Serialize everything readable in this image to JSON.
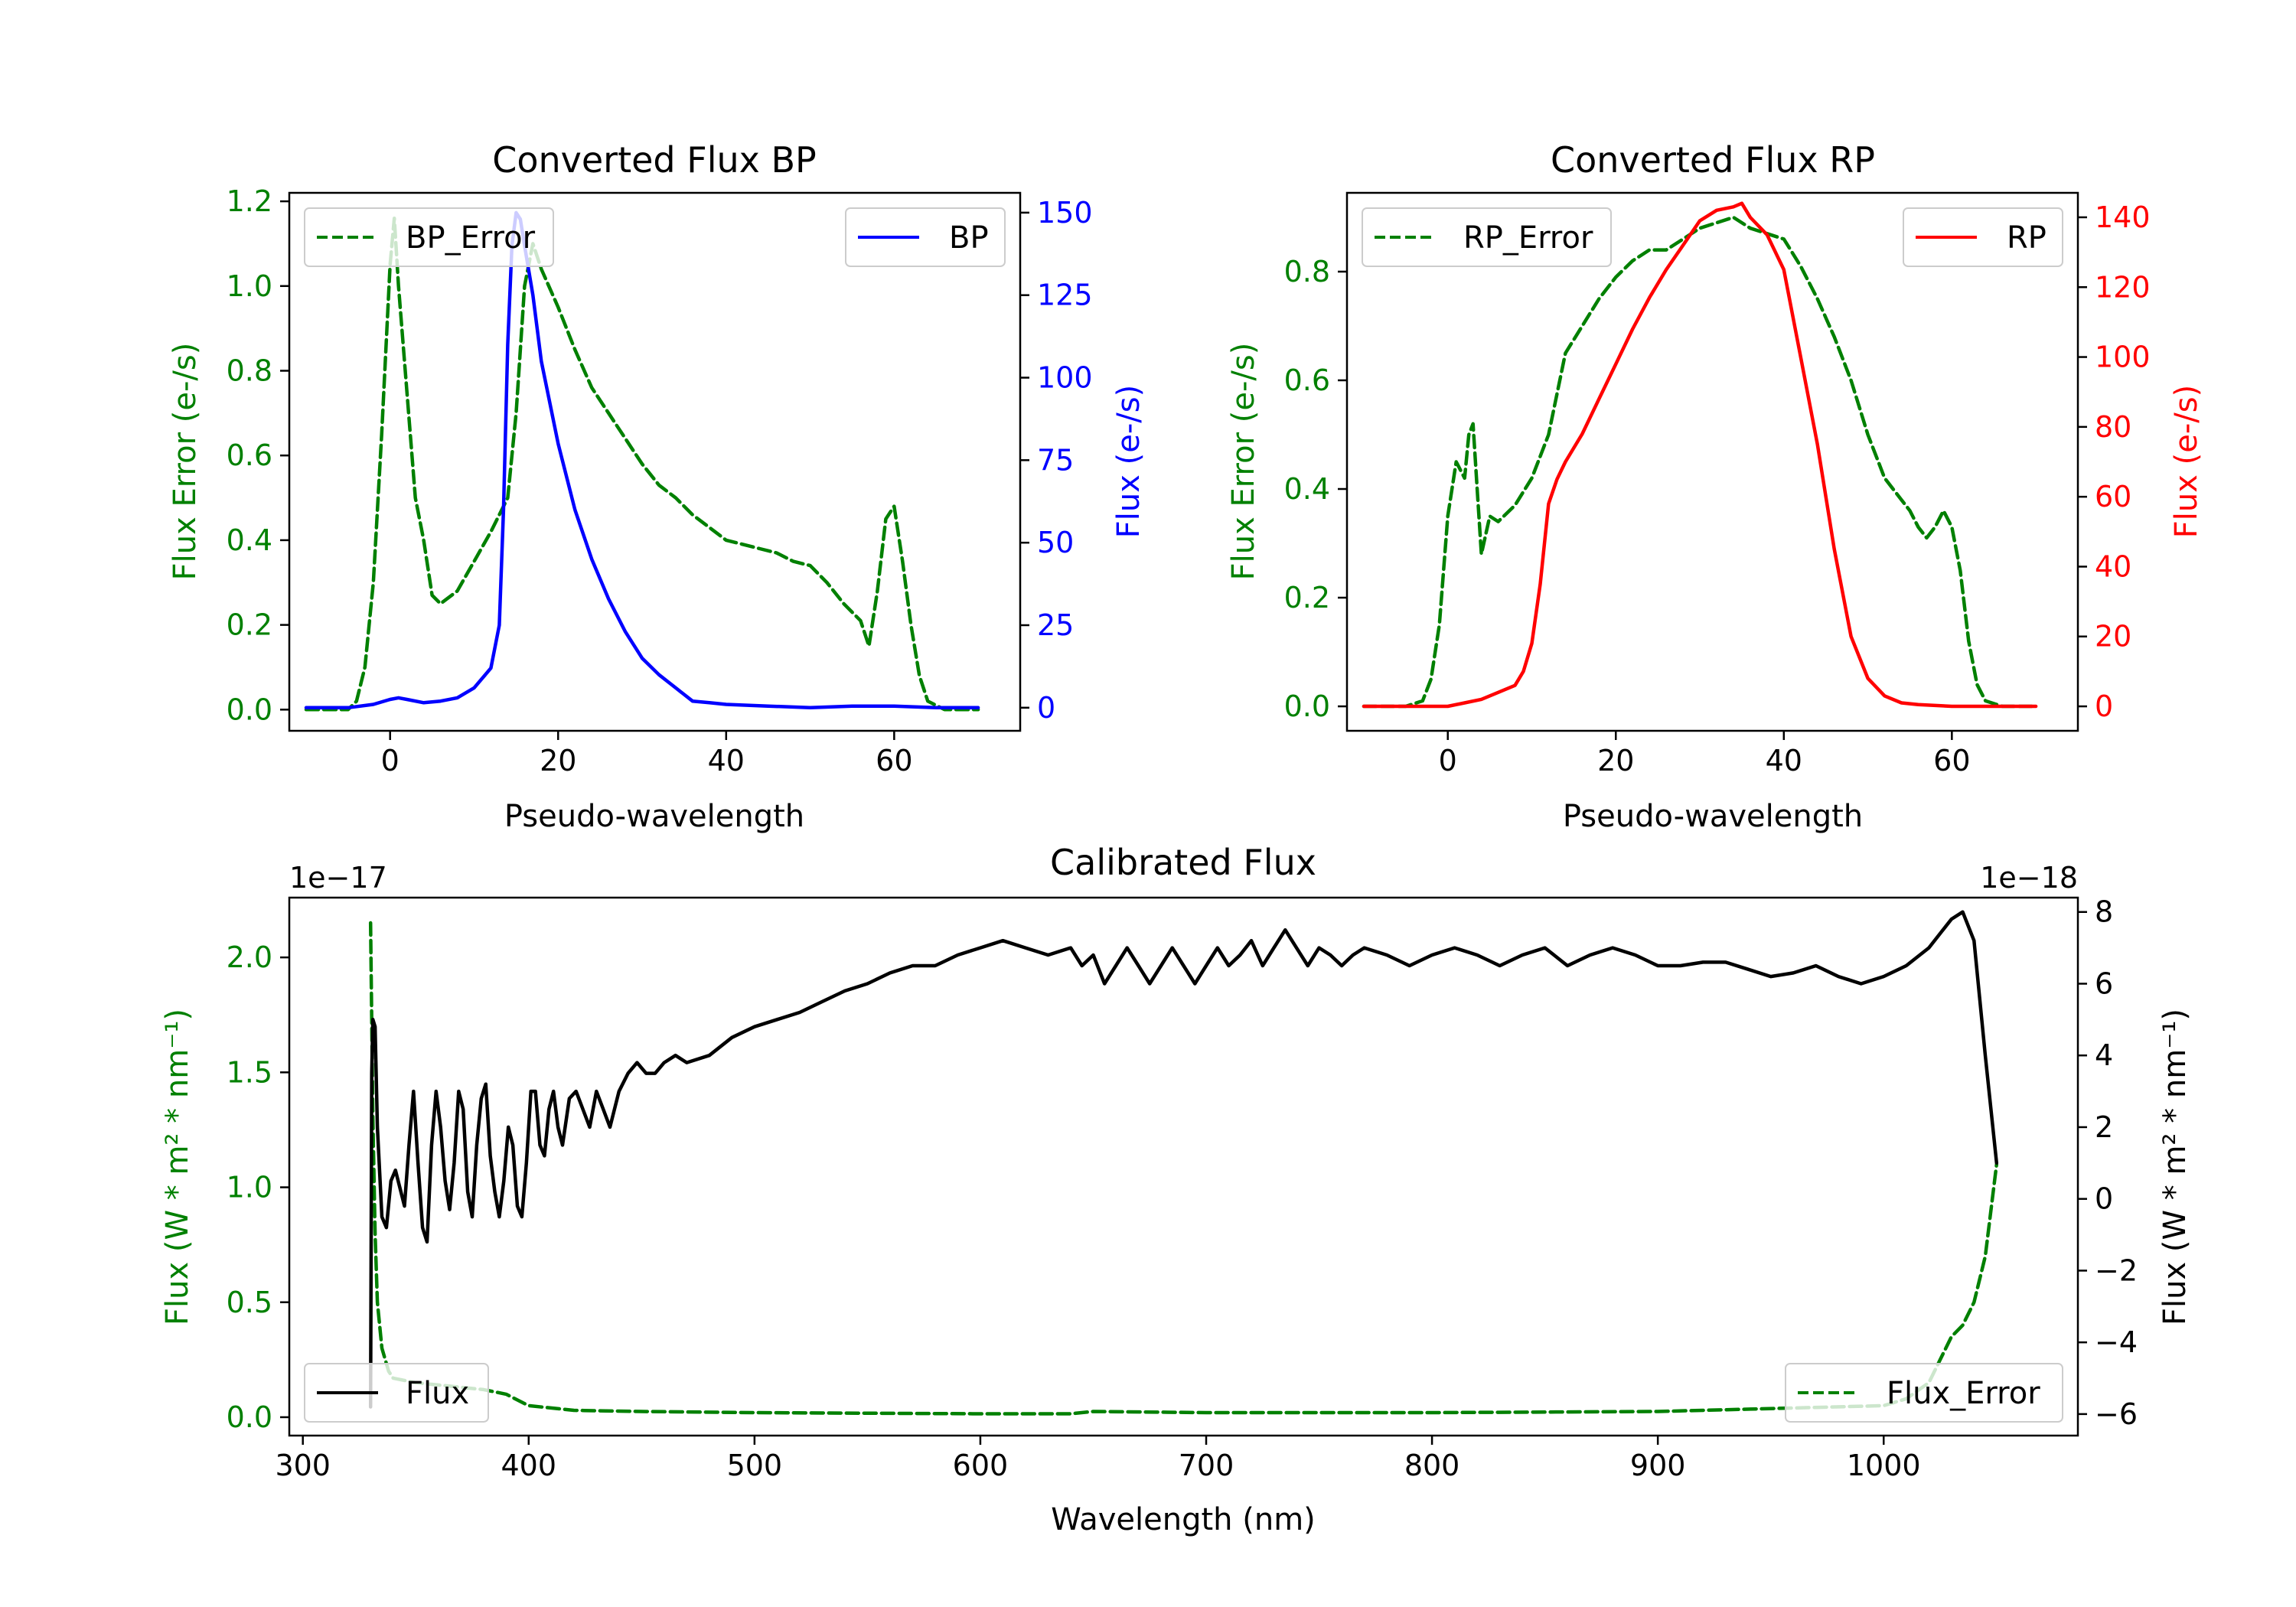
{
  "chart_data": [
    {
      "type": "line",
      "title": "Converted Flux BP",
      "xlabel": "Pseudo-wavelength",
      "ylabel_left": "Flux Error (e-/s)",
      "ylabel_right": "Flux (e-/s)",
      "xlim": [
        -12,
        75
      ],
      "ylim_left": [
        -0.05,
        1.22
      ],
      "ylim_right": [
        -7,
        156
      ],
      "xticks": [
        0,
        20,
        40,
        60
      ],
      "yticks_left": [
        0.0,
        0.2,
        0.4,
        0.6,
        0.8,
        1.0,
        1.2
      ],
      "yticks_right": [
        0,
        25,
        50,
        75,
        100,
        125,
        150
      ],
      "colors": {
        "left": "#008000",
        "right": "#0000ff"
      },
      "series": [
        {
          "name": "BP_Error",
          "axis": "left",
          "color": "#008000",
          "dash": true,
          "x": [
            -10,
            -5,
            -4,
            -3,
            -2,
            -1,
            0,
            0.5,
            1,
            2,
            3,
            4,
            5,
            6,
            8,
            10,
            12,
            14,
            15,
            16,
            17,
            18,
            20,
            22,
            24,
            26,
            28,
            30,
            32,
            34,
            36,
            38,
            40,
            42,
            44,
            46,
            48,
            50,
            52,
            54,
            56,
            57,
            58,
            59,
            60,
            61,
            62,
            63,
            64,
            66,
            70
          ],
          "y": [
            0.0,
            0.0,
            0.02,
            0.1,
            0.3,
            0.65,
            1.05,
            1.16,
            1.0,
            0.75,
            0.5,
            0.4,
            0.27,
            0.25,
            0.28,
            0.35,
            0.42,
            0.5,
            0.7,
            1.0,
            1.1,
            1.04,
            0.95,
            0.85,
            0.76,
            0.7,
            0.64,
            0.58,
            0.53,
            0.5,
            0.46,
            0.43,
            0.4,
            0.39,
            0.38,
            0.37,
            0.35,
            0.34,
            0.3,
            0.25,
            0.21,
            0.15,
            0.28,
            0.45,
            0.48,
            0.35,
            0.2,
            0.08,
            0.02,
            0.0,
            0.0
          ]
        },
        {
          "name": "BP",
          "axis": "right",
          "color": "#0000ff",
          "dash": false,
          "x": [
            -10,
            -5,
            -2,
            0,
            1,
            2,
            4,
            6,
            8,
            10,
            12,
            13,
            13.5,
            14,
            14.5,
            15,
            15.5,
            16,
            17,
            18,
            20,
            22,
            24,
            26,
            28,
            30,
            32,
            34,
            36,
            38,
            40,
            45,
            50,
            55,
            60,
            65,
            70
          ],
          "y": [
            0,
            0,
            1,
            2.5,
            3,
            2.5,
            1.5,
            2,
            3,
            6,
            12,
            25,
            60,
            110,
            140,
            150,
            148,
            140,
            125,
            105,
            80,
            60,
            45,
            33,
            23,
            15,
            10,
            6,
            2,
            1.5,
            1,
            0.5,
            0,
            0.5,
            0.5,
            0,
            0
          ]
        }
      ],
      "legend": [
        {
          "label": "BP_Error",
          "position": "upper-left"
        },
        {
          "label": "BP",
          "position": "upper-right"
        }
      ]
    },
    {
      "type": "line",
      "title": "Converted Flux RP",
      "xlabel": "Pseudo-wavelength",
      "ylabel_left": "Flux Error (e-/s)",
      "ylabel_right": "Flux (e-/s)",
      "xlim": [
        -12,
        75
      ],
      "ylim_left": [
        -0.045,
        0.945
      ],
      "ylim_right": [
        -7,
        147
      ],
      "xticks": [
        0,
        20,
        40,
        60
      ],
      "yticks_left": [
        0.0,
        0.2,
        0.4,
        0.6,
        0.8
      ],
      "yticks_right": [
        0,
        20,
        40,
        60,
        80,
        100,
        120,
        140
      ],
      "colors": {
        "left": "#008000",
        "right": "#ff0000"
      },
      "series": [
        {
          "name": "RP_Error",
          "axis": "left",
          "color": "#008000",
          "dash": true,
          "x": [
            -10,
            -5,
            -3,
            -2,
            -1,
            0,
            1,
            2,
            2.5,
            3,
            3.5,
            4,
            5,
            6,
            8,
            10,
            12,
            14,
            16,
            18,
            20,
            22,
            24,
            26,
            28,
            30,
            32,
            34,
            36,
            38,
            40,
            42,
            44,
            46,
            48,
            50,
            52,
            54,
            55,
            56,
            57,
            58,
            59,
            60,
            61,
            62,
            63,
            64,
            66,
            70
          ],
          "y": [
            0.0,
            0.0,
            0.01,
            0.05,
            0.15,
            0.35,
            0.45,
            0.42,
            0.5,
            0.52,
            0.4,
            0.28,
            0.35,
            0.34,
            0.37,
            0.42,
            0.5,
            0.65,
            0.7,
            0.75,
            0.79,
            0.82,
            0.84,
            0.84,
            0.86,
            0.88,
            0.89,
            0.9,
            0.88,
            0.87,
            0.86,
            0.81,
            0.75,
            0.68,
            0.6,
            0.5,
            0.42,
            0.38,
            0.36,
            0.33,
            0.31,
            0.33,
            0.36,
            0.33,
            0.25,
            0.12,
            0.04,
            0.01,
            0.0,
            0.0
          ]
        },
        {
          "name": "RP",
          "axis": "right",
          "color": "#ff0000",
          "dash": false,
          "x": [
            -10,
            -5,
            0,
            2,
            4,
            6,
            8,
            9,
            10,
            11,
            12,
            13,
            14,
            16,
            18,
            20,
            22,
            24,
            26,
            28,
            30,
            32,
            34,
            35,
            36,
            38,
            40,
            42,
            44,
            46,
            48,
            50,
            52,
            54,
            56,
            60,
            65,
            70
          ],
          "y": [
            0,
            0,
            0,
            1,
            2,
            4,
            6,
            10,
            18,
            35,
            58,
            65,
            70,
            78,
            88,
            98,
            108,
            117,
            125,
            132,
            139,
            142,
            143,
            144,
            140,
            135,
            125,
            100,
            75,
            45,
            20,
            8,
            3,
            1,
            0.5,
            0,
            0,
            0
          ]
        }
      ],
      "legend": [
        {
          "label": "RP_Error",
          "position": "upper-left"
        },
        {
          "label": "RP",
          "position": "upper-right"
        }
      ]
    },
    {
      "type": "line",
      "title": "Calibrated Flux",
      "xlabel": "Wavelength (nm)",
      "ylabel_left": "Flux (W * m² * nm⁻¹)",
      "ylabel_right": "Flux (W * m² * nm⁻¹)",
      "offset_left": "1e−17",
      "offset_right": "1e−18",
      "xlim": [
        294,
        1086
      ],
      "ylim_left": [
        -0.08,
        2.26
      ],
      "ylim_right": [
        -6.6,
        8.4
      ],
      "xticks": [
        300,
        400,
        500,
        600,
        700,
        800,
        900,
        1000
      ],
      "yticks_left": [
        0.0,
        0.5,
        1.0,
        1.5,
        2.0
      ],
      "yticks_right": [
        -6,
        -4,
        -2,
        0,
        2,
        4,
        6,
        8
      ],
      "colors": {
        "left": "#008000",
        "right": "#000000"
      },
      "series": [
        {
          "name": "Flux_Error",
          "axis": "left",
          "color": "#008000",
          "dash": true,
          "x": [
            330,
            331,
            332,
            333,
            335,
            338,
            340,
            345,
            350,
            360,
            370,
            380,
            390,
            400,
            420,
            450,
            500,
            600,
            640,
            650,
            700,
            800,
            900,
            1000,
            1010,
            1020,
            1025,
            1030,
            1035,
            1040,
            1045,
            1050
          ],
          "y": [
            2.15,
            1.3,
            0.8,
            0.5,
            0.3,
            0.2,
            0.17,
            0.16,
            0.15,
            0.14,
            0.13,
            0.12,
            0.1,
            0.05,
            0.03,
            0.025,
            0.02,
            0.015,
            0.015,
            0.025,
            0.02,
            0.02,
            0.025,
            0.05,
            0.08,
            0.15,
            0.25,
            0.35,
            0.4,
            0.5,
            0.7,
            1.1
          ]
        },
        {
          "name": "Flux",
          "axis": "right",
          "color": "#000000",
          "dash": false,
          "x": [
            330,
            330.5,
            331,
            332,
            333,
            335,
            337,
            339,
            341,
            343,
            345,
            347,
            349,
            351,
            353,
            355,
            357,
            359,
            361,
            363,
            365,
            367,
            369,
            371,
            373,
            375,
            377,
            379,
            381,
            383,
            385,
            387,
            389,
            391,
            393,
            395,
            397,
            399,
            401,
            403,
            405,
            407,
            409,
            411,
            413,
            415,
            418,
            421,
            424,
            427,
            430,
            433,
            436,
            440,
            444,
            448,
            452,
            456,
            460,
            465,
            470,
            480,
            490,
            500,
            510,
            520,
            530,
            540,
            550,
            560,
            570,
            580,
            590,
            600,
            610,
            620,
            630,
            640,
            645,
            650,
            655,
            660,
            665,
            670,
            675,
            680,
            685,
            690,
            695,
            700,
            705,
            710,
            715,
            720,
            725,
            730,
            735,
            740,
            745,
            750,
            755,
            760,
            765,
            770,
            780,
            790,
            800,
            810,
            820,
            830,
            840,
            850,
            860,
            870,
            880,
            890,
            900,
            910,
            920,
            930,
            940,
            950,
            960,
            970,
            980,
            990,
            1000,
            1010,
            1020,
            1030,
            1035,
            1040,
            1045,
            1050
          ],
          "y": [
            -5.8,
            3.5,
            5.0,
            4.8,
            2.0,
            -0.5,
            -0.8,
            0.5,
            0.8,
            0.3,
            -0.2,
            1.5,
            3.0,
            1.0,
            -0.8,
            -1.2,
            1.5,
            3.0,
            2.0,
            0.5,
            -0.3,
            1.0,
            3.0,
            2.5,
            0.2,
            -0.5,
            1.5,
            2.8,
            3.2,
            1.2,
            0.2,
            -0.5,
            0.5,
            2.0,
            1.5,
            -0.2,
            -0.5,
            1.0,
            3.0,
            3.0,
            1.5,
            1.2,
            2.5,
            3.0,
            2.0,
            1.5,
            2.8,
            3.0,
            2.5,
            2.0,
            3.0,
            2.5,
            2.0,
            3.0,
            3.5,
            3.8,
            3.5,
            3.5,
            3.8,
            4.0,
            3.8,
            4.0,
            4.5,
            4.8,
            5.0,
            5.2,
            5.5,
            5.8,
            6.0,
            6.3,
            6.5,
            6.5,
            6.8,
            7.0,
            7.2,
            7.0,
            6.8,
            7.0,
            6.5,
            6.8,
            6.0,
            6.5,
            7.0,
            6.5,
            6.0,
            6.5,
            7.0,
            6.5,
            6.0,
            6.5,
            7.0,
            6.5,
            6.8,
            7.2,
            6.5,
            7.0,
            7.5,
            7.0,
            6.5,
            7.0,
            6.8,
            6.5,
            6.8,
            7.0,
            6.8,
            6.5,
            6.8,
            7.0,
            6.8,
            6.5,
            6.8,
            7.0,
            6.5,
            6.8,
            7.0,
            6.8,
            6.5,
            6.5,
            6.6,
            6.6,
            6.4,
            6.2,
            6.3,
            6.5,
            6.2,
            6.0,
            6.2,
            6.5,
            7.0,
            7.8,
            8.0,
            7.2,
            4.0,
            1.0
          ],
          "notes": "y in units of 1e-18"
        }
      ],
      "legend": [
        {
          "label": "Flux",
          "position": "lower-left"
        },
        {
          "label": "Flux_Error",
          "position": "lower-right"
        }
      ]
    }
  ]
}
